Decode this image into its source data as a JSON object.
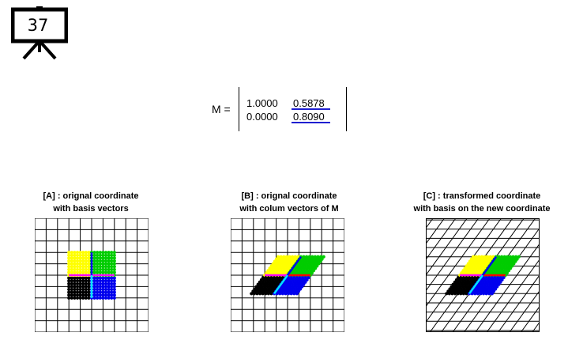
{
  "slide": {
    "number": "37",
    "icon": "presentation-board-icon"
  },
  "matrix": {
    "label": "M =",
    "rows": [
      [
        "1.0000",
        "0.5878"
      ],
      [
        "0.0000",
        "0.8090"
      ]
    ],
    "highlight_color": "#1f1fd0"
  },
  "panels": [
    {
      "title_line1": "[A] : orignal coordinate",
      "title_line2": "with basis vectors"
    },
    {
      "title_line1": "[B] : orignal coordinate",
      "title_line2": "with colum vectors of M"
    },
    {
      "title_line1": "[C] : transformed coordinate",
      "title_line2": "with basis on the new coordinate"
    }
  ],
  "colors": {
    "q1": "#00cc00",
    "q2": "#ffff00",
    "q3": "#000000",
    "q4": "#0000ee",
    "axis_x": "#ff00ff",
    "axis_y": "#0000ee",
    "axis_x2": "#ff0000",
    "axis_y2": "#00e5ff"
  },
  "shear": 0.5878,
  "scale_y": 0.809
}
